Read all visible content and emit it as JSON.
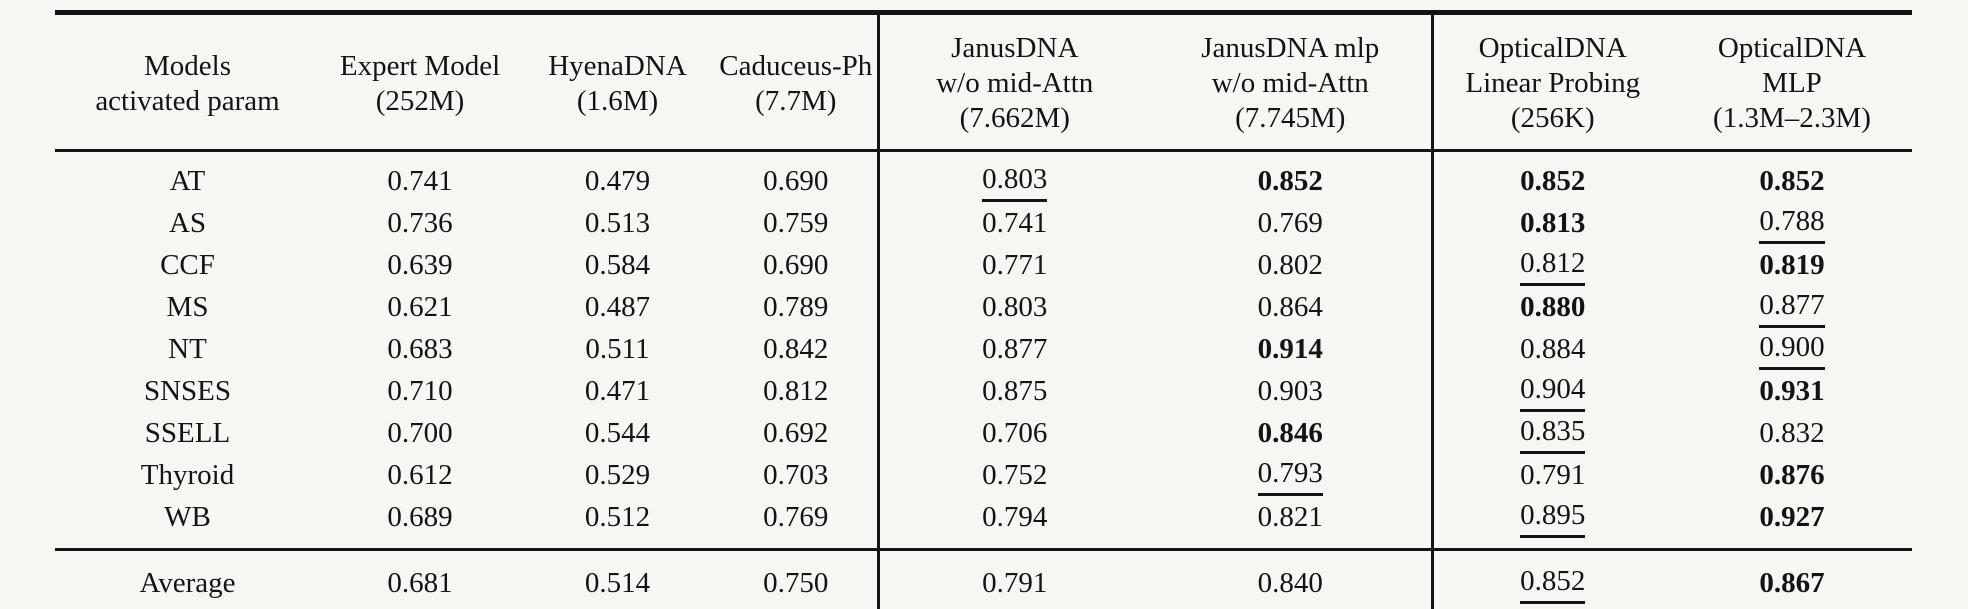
{
  "table": {
    "header": [
      {
        "id": "models",
        "lines": [
          "Models",
          "activated param"
        ],
        "divider_left": false
      },
      {
        "id": "expert-model",
        "lines": [
          "Expert Model",
          "(252M)"
        ],
        "divider_left": false
      },
      {
        "id": "hyenadna",
        "lines": [
          "HyenaDNA",
          "(1.6M)"
        ],
        "divider_left": false
      },
      {
        "id": "caduceus-ph",
        "lines": [
          "Caduceus-Ph",
          "(7.7M)"
        ],
        "divider_left": false
      },
      {
        "id": "janusdna",
        "lines": [
          "JanusDNA",
          "w/o mid-Attn",
          "(7.662M)"
        ],
        "divider_left": true
      },
      {
        "id": "janusdna-mlp",
        "lines": [
          "JanusDNA mlp",
          "w/o mid-Attn",
          "(7.745M)"
        ],
        "divider_left": false
      },
      {
        "id": "opticaldna-linear-probing",
        "lines": [
          "OpticalDNA",
          "Linear Probing",
          "(256K)"
        ],
        "divider_left": true
      },
      {
        "id": "opticaldna-mlp",
        "lines": [
          "OpticalDNA",
          "MLP",
          "(1.3M–2.3M)"
        ],
        "divider_left": false
      }
    ],
    "rows": [
      {
        "model": "AT",
        "cells": [
          {
            "text": "0.741",
            "style": "plain"
          },
          {
            "text": "0.479",
            "style": "plain"
          },
          {
            "text": "0.690",
            "style": "plain"
          },
          {
            "text": "0.803",
            "style": "underline"
          },
          {
            "text": "0.852",
            "style": "bold"
          },
          {
            "text": "0.852",
            "style": "bold"
          },
          {
            "text": "0.852",
            "style": "bold"
          }
        ]
      },
      {
        "model": "AS",
        "cells": [
          {
            "text": "0.736",
            "style": "plain"
          },
          {
            "text": "0.513",
            "style": "plain"
          },
          {
            "text": "0.759",
            "style": "plain"
          },
          {
            "text": "0.741",
            "style": "plain"
          },
          {
            "text": "0.769",
            "style": "plain"
          },
          {
            "text": "0.813",
            "style": "bold"
          },
          {
            "text": "0.788",
            "style": "underline"
          }
        ]
      },
      {
        "model": "CCF",
        "cells": [
          {
            "text": "0.639",
            "style": "plain"
          },
          {
            "text": "0.584",
            "style": "plain"
          },
          {
            "text": "0.690",
            "style": "plain"
          },
          {
            "text": "0.771",
            "style": "plain"
          },
          {
            "text": "0.802",
            "style": "plain"
          },
          {
            "text": "0.812",
            "style": "underline"
          },
          {
            "text": "0.819",
            "style": "bold"
          }
        ]
      },
      {
        "model": "MS",
        "cells": [
          {
            "text": "0.621",
            "style": "plain"
          },
          {
            "text": "0.487",
            "style": "plain"
          },
          {
            "text": "0.789",
            "style": "plain"
          },
          {
            "text": "0.803",
            "style": "plain"
          },
          {
            "text": "0.864",
            "style": "plain"
          },
          {
            "text": "0.880",
            "style": "bold"
          },
          {
            "text": "0.877",
            "style": "underline"
          }
        ]
      },
      {
        "model": "NT",
        "cells": [
          {
            "text": "0.683",
            "style": "plain"
          },
          {
            "text": "0.511",
            "style": "plain"
          },
          {
            "text": "0.842",
            "style": "plain"
          },
          {
            "text": "0.877",
            "style": "plain"
          },
          {
            "text": "0.914",
            "style": "bold"
          },
          {
            "text": "0.884",
            "style": "plain"
          },
          {
            "text": "0.900",
            "style": "underline"
          }
        ]
      },
      {
        "model": "SNSES",
        "cells": [
          {
            "text": "0.710",
            "style": "plain"
          },
          {
            "text": "0.471",
            "style": "plain"
          },
          {
            "text": "0.812",
            "style": "plain"
          },
          {
            "text": "0.875",
            "style": "plain"
          },
          {
            "text": "0.903",
            "style": "plain"
          },
          {
            "text": "0.904",
            "style": "underline"
          },
          {
            "text": "0.931",
            "style": "bold"
          }
        ]
      },
      {
        "model": "SSELL",
        "cells": [
          {
            "text": "0.700",
            "style": "plain"
          },
          {
            "text": "0.544",
            "style": "plain"
          },
          {
            "text": "0.692",
            "style": "plain"
          },
          {
            "text": "0.706",
            "style": "plain"
          },
          {
            "text": "0.846",
            "style": "bold"
          },
          {
            "text": "0.835",
            "style": "underline"
          },
          {
            "text": "0.832",
            "style": "plain"
          }
        ]
      },
      {
        "model": "Thyroid",
        "cells": [
          {
            "text": "0.612",
            "style": "plain"
          },
          {
            "text": "0.529",
            "style": "plain"
          },
          {
            "text": "0.703",
            "style": "plain"
          },
          {
            "text": "0.752",
            "style": "plain"
          },
          {
            "text": "0.793",
            "style": "underline"
          },
          {
            "text": "0.791",
            "style": "plain"
          },
          {
            "text": "0.876",
            "style": "bold"
          }
        ]
      },
      {
        "model": "WB",
        "cells": [
          {
            "text": "0.689",
            "style": "plain"
          },
          {
            "text": "0.512",
            "style": "plain"
          },
          {
            "text": "0.769",
            "style": "plain"
          },
          {
            "text": "0.794",
            "style": "plain"
          },
          {
            "text": "0.821",
            "style": "plain"
          },
          {
            "text": "0.895",
            "style": "underline"
          },
          {
            "text": "0.927",
            "style": "bold"
          }
        ]
      }
    ],
    "footer_row": {
      "model": "Average",
      "cells": [
        {
          "text": "0.681",
          "style": "plain"
        },
        {
          "text": "0.514",
          "style": "plain"
        },
        {
          "text": "0.750",
          "style": "plain"
        },
        {
          "text": "0.791",
          "style": "plain"
        },
        {
          "text": "0.840",
          "style": "plain"
        },
        {
          "text": "0.852",
          "style": "underline"
        },
        {
          "text": "0.867",
          "style": "bold"
        }
      ]
    },
    "styles": {
      "text_color": "#141414",
      "background": "#f6f6f3",
      "rule_color": "#141414"
    }
  }
}
